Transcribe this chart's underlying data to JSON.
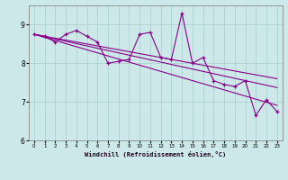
{
  "xlabel": "Windchill (Refroidissement éolien,°C)",
  "ylabel": "",
  "xlim": [
    -0.5,
    23.5
  ],
  "ylim": [
    6,
    9.5
  ],
  "xticks": [
    0,
    1,
    2,
    3,
    4,
    5,
    6,
    7,
    8,
    9,
    10,
    11,
    12,
    13,
    14,
    15,
    16,
    17,
    18,
    19,
    20,
    21,
    22,
    23
  ],
  "yticks": [
    6,
    7,
    8,
    9
  ],
  "bg_color": "#cce8e8",
  "grid_color": "#aacece",
  "line_color": "#880088",
  "trend_lines": [
    [
      8.75,
      8.67,
      8.59,
      8.51,
      8.43,
      8.35,
      8.27,
      8.19,
      8.11,
      8.03,
      7.95,
      7.87,
      7.79,
      7.71,
      7.63,
      7.55,
      7.47,
      7.39,
      7.31,
      7.23,
      7.15,
      7.07,
      6.99,
      6.91
    ],
    [
      8.75,
      8.69,
      8.63,
      8.57,
      8.51,
      8.45,
      8.39,
      8.33,
      8.27,
      8.21,
      8.15,
      8.09,
      8.03,
      7.97,
      7.91,
      7.85,
      7.79,
      7.73,
      7.67,
      7.61,
      7.55,
      7.49,
      7.43,
      7.37
    ],
    [
      8.75,
      8.7,
      8.65,
      8.6,
      8.55,
      8.5,
      8.45,
      8.4,
      8.35,
      8.3,
      8.25,
      8.2,
      8.15,
      8.1,
      8.05,
      8.0,
      7.95,
      7.9,
      7.85,
      7.8,
      7.75,
      7.7,
      7.65,
      7.6
    ]
  ],
  "main_data": [
    8.75,
    8.7,
    8.55,
    8.75,
    8.85,
    8.7,
    8.55,
    8.0,
    8.05,
    8.1,
    8.75,
    8.8,
    8.15,
    8.1,
    9.3,
    8.0,
    8.15,
    7.55,
    7.45,
    7.4,
    7.55,
    6.65,
    7.05,
    6.75
  ],
  "figsize": [
    3.2,
    2.0
  ],
  "dpi": 100
}
